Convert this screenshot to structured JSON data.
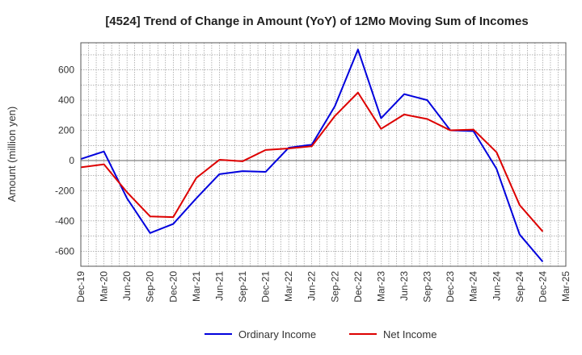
{
  "chart_data": {
    "type": "line",
    "title": "[4524]  Trend of Change in Amount (YoY) of 12Mo Moving Sum of Incomes",
    "ylabel": "Amount (million yen)",
    "xlabel": "",
    "ylim": [
      -700,
      780
    ],
    "yticks": [
      -600,
      -400,
      -200,
      0,
      200,
      400,
      600
    ],
    "grid": true,
    "legend_position": "bottom",
    "x_tick_labels": [
      "Dec-19",
      "Mar-20",
      "Jun-20",
      "Sep-20",
      "Dec-20",
      "Mar-21",
      "Jun-21",
      "Sep-21",
      "Dec-21",
      "Mar-22",
      "Jun-22",
      "Sep-22",
      "Dec-22",
      "Mar-23",
      "Jun-23",
      "Sep-23",
      "Dec-23",
      "Mar-24",
      "Jun-24",
      "Sep-24",
      "Dec-24",
      "Mar-25"
    ],
    "x": [
      "Dec-19",
      "Mar-20",
      "Jun-20",
      "Sep-20",
      "Dec-20",
      "Mar-21",
      "Jun-21",
      "Sep-21",
      "Dec-21",
      "Mar-22",
      "Jun-22",
      "Sep-22",
      "Dec-22",
      "Mar-23",
      "Jun-23",
      "Sep-23",
      "Dec-23",
      "Mar-24",
      "Jun-24",
      "Sep-24",
      "Dec-24"
    ],
    "series": [
      {
        "name": "Ordinary Income",
        "color": "#0000dd",
        "values": [
          10,
          60,
          -250,
          -480,
          -420,
          -250,
          -90,
          -70,
          -75,
          85,
          105,
          360,
          735,
          280,
          440,
          400,
          200,
          195,
          -55,
          -490,
          -670
        ]
      },
      {
        "name": "Net Income",
        "color": "#dd0000",
        "values": [
          -45,
          -25,
          -210,
          -370,
          -375,
          -115,
          5,
          -5,
          70,
          80,
          95,
          295,
          450,
          210,
          305,
          275,
          200,
          205,
          55,
          -295,
          -470
        ]
      }
    ]
  }
}
